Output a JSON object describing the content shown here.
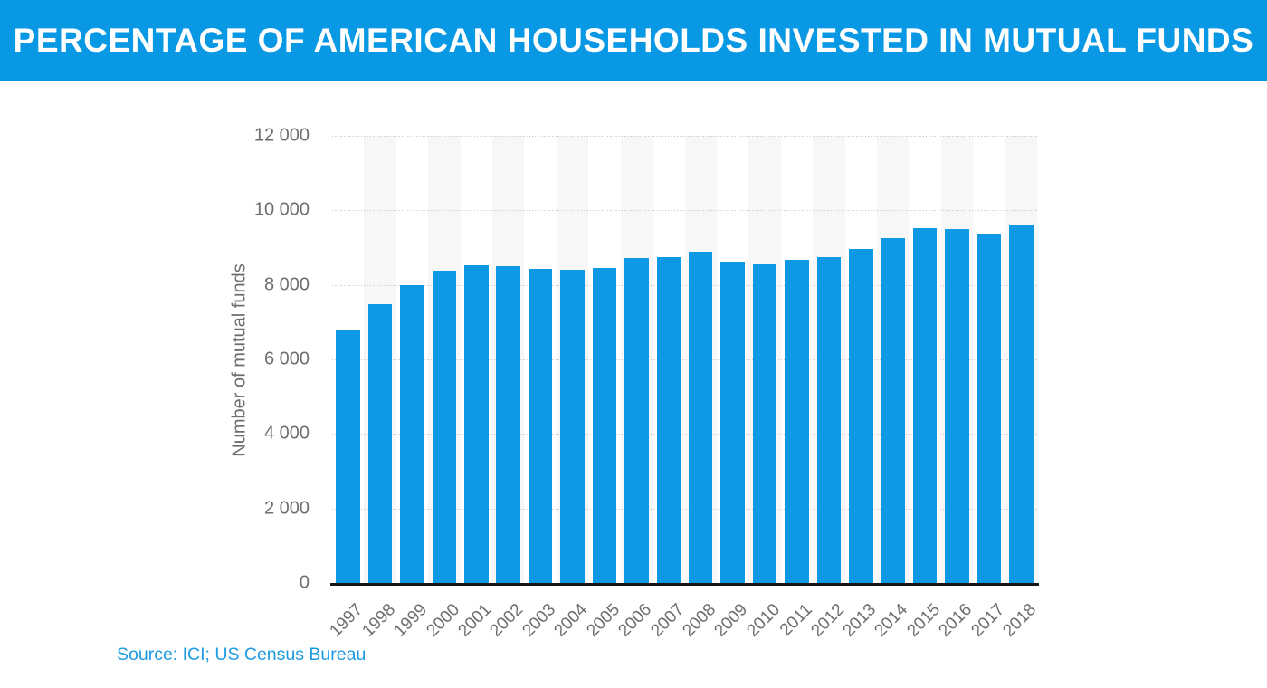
{
  "header": {
    "title": "PERCENTAGE OF AMERICAN HOUSEHOLDS INVESTED IN MUTUAL FUNDS",
    "background_color": "#0998e4",
    "text_color": "#ffffff"
  },
  "chart_data": {
    "type": "bar",
    "title": "PERCENTAGE OF AMERICAN HOUSEHOLDS INVESTED IN MUTUAL FUNDS",
    "xlabel": "",
    "ylabel": "Number of mutual funds",
    "ylim": [
      0,
      12000
    ],
    "ytick_step": 2000,
    "ytick_labels": [
      "0",
      "2 000",
      "4 000",
      "6 000",
      "8 000",
      "10 000",
      "12 000"
    ],
    "grid": "horizontal dotted lines, behind bars",
    "legend_position": "none",
    "categories": [
      "1997",
      "1998",
      "1999",
      "2000",
      "2001",
      "2002",
      "2003",
      "2004",
      "2005",
      "2006",
      "2007",
      "2008",
      "2009",
      "2010",
      "2011",
      "2012",
      "2013",
      "2014",
      "2015",
      "2016",
      "2017",
      "2018"
    ],
    "values": [
      6778,
      7489,
      7997,
      8370,
      8518,
      8511,
      8426,
      8415,
      8449,
      8721,
      8746,
      8880,
      8612,
      8540,
      8673,
      8744,
      8972,
      9258,
      9517,
      9505,
      9354,
      9599
    ],
    "bar_color": "#0d99e3",
    "alt_column_stripe_color": "#f7f7f7",
    "gridline_color": "#cbcbcb",
    "axis_line_color": "#161616",
    "tick_text_color": "#6e6e6e"
  },
  "footer": {
    "source": "Source: ICI; US Census Bureau",
    "text_color": "#1d9be1"
  }
}
